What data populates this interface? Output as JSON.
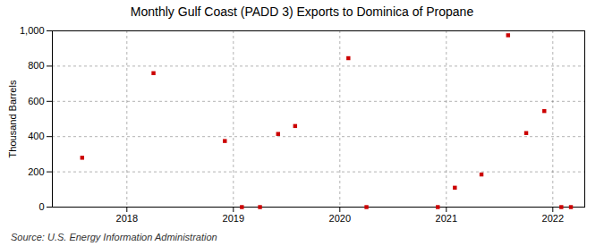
{
  "chart_data": {
    "type": "scatter",
    "title": "Monthly Gulf Coast (PADD 3) Exports to Dominica of Propane",
    "ylabel": "Thousand Barrels",
    "caption": "Source: U.S. Energy Information Administration",
    "x": [
      2017.58,
      2018.25,
      2018.92,
      2019.08,
      2019.25,
      2019.42,
      2019.58,
      2020.08,
      2020.25,
      2020.92,
      2021.08,
      2021.33,
      2021.58,
      2021.75,
      2021.92,
      2022.08,
      2022.17
    ],
    "values": [
      280,
      760,
      375,
      0,
      0,
      415,
      460,
      845,
      0,
      0,
      110,
      185,
      975,
      420,
      545,
      0,
      0
    ],
    "color": "#cc0000",
    "marker": "square",
    "xlim": [
      2017.3,
      2022.3
    ],
    "xticks": [
      2018,
      2019,
      2020,
      2021,
      2022
    ],
    "ylim": [
      0,
      1000
    ],
    "yticks": [
      0,
      200,
      400,
      600,
      800,
      {
        "value": 1000,
        "label": "1,000"
      }
    ],
    "grid": true
  }
}
